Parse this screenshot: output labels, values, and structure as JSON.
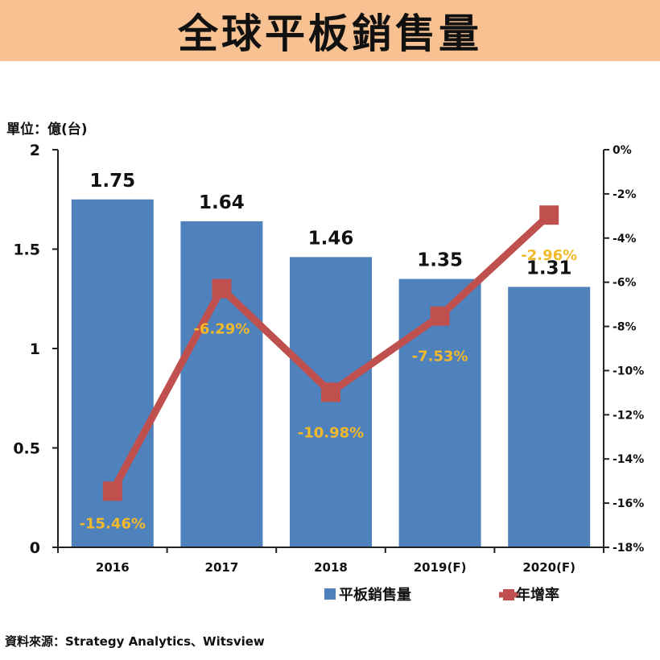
{
  "header": {
    "title": "全球平板銷售量"
  },
  "unit_label": "單位：億(台)",
  "source_label": "資料來源：Strategy Analytics、Witsview",
  "colors": {
    "bar": "#4f81bd",
    "line": "#c0504d",
    "pct_label": "#f2b92a",
    "title_bg": "#f7c191"
  },
  "chart_data": {
    "type": "bar",
    "categories": [
      "2016",
      "2017",
      "2018",
      "2019(F)",
      "2020(F)"
    ],
    "series": [
      {
        "name": "平板銷售量",
        "type": "bar",
        "axis": "left",
        "values": [
          1.75,
          1.64,
          1.46,
          1.35,
          1.31
        ],
        "labels": [
          "1.75",
          "1.64",
          "1.46",
          "1.35",
          "1.31"
        ]
      },
      {
        "name": "年增率",
        "type": "line",
        "axis": "right",
        "values": [
          -15.46,
          -6.29,
          -10.98,
          -7.53,
          -2.96
        ],
        "labels": [
          "-15.46%",
          "-6.29%",
          "-10.98%",
          "-7.53%",
          "-2.96%"
        ]
      }
    ],
    "y_left": {
      "min": 0,
      "max": 2,
      "ticks": [
        "0",
        "0.5",
        "1",
        "1.5",
        "2"
      ],
      "tick_values": [
        0,
        0.5,
        1,
        1.5,
        2
      ]
    },
    "y_right": {
      "min": -18,
      "max": 0,
      "ticks": [
        "0%",
        "-2%",
        "-4%",
        "-6%",
        "-8%",
        "-10%",
        "-12%",
        "-14%",
        "-16%",
        "-18%"
      ],
      "tick_values": [
        0,
        -2,
        -4,
        -6,
        -8,
        -10,
        -12,
        -14,
        -16,
        -18
      ]
    },
    "legend": {
      "position": "bottom-right",
      "items": [
        "平板銷售量",
        "年增率"
      ]
    }
  }
}
